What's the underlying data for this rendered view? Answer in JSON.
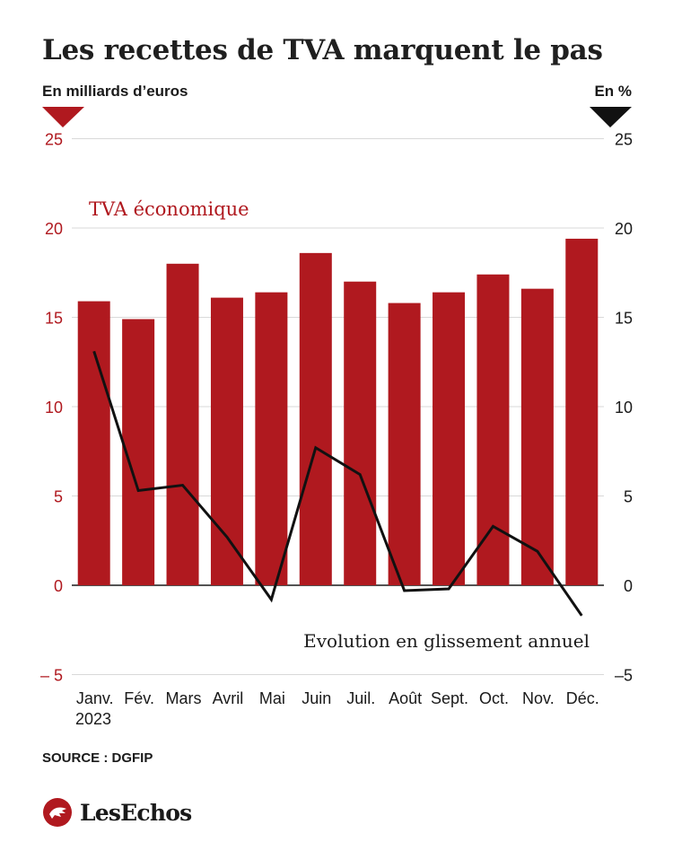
{
  "title": "Les recettes de TVA marquent le pas",
  "left_axis_unit": "En milliards d’euros",
  "right_axis_unit": "En %",
  "source": "SOURCE : DGFIP",
  "logo_text": "LesEchos",
  "colors": {
    "bar": "#b0191f",
    "line": "#111111",
    "grid": "#d9d9d9",
    "left_ticks": "#b0191f",
    "right_ticks": "#1a1a1a"
  },
  "chart_data": {
    "type": "bar",
    "categories": [
      "Janv.",
      "Fév.",
      "Mars",
      "Avril",
      "Mai",
      "Juin",
      "Juil.",
      "Août",
      "Sept.",
      "Oct.",
      "Nov.",
      "Déc."
    ],
    "year_label": "2023",
    "series": [
      {
        "name": "TVA économique",
        "type": "bar",
        "axis": "left",
        "values": [
          15.9,
          14.9,
          18.0,
          16.1,
          16.4,
          18.6,
          17.0,
          15.8,
          16.4,
          17.4,
          16.6,
          19.4
        ]
      },
      {
        "name": "Evolution en glissement annuel",
        "type": "line",
        "axis": "right",
        "values": [
          13.1,
          5.3,
          5.6,
          2.7,
          -0.8,
          7.7,
          6.2,
          -0.3,
          -0.2,
          3.3,
          1.9,
          -1.7
        ]
      }
    ],
    "ylim_left": [
      -5,
      25
    ],
    "ylim_right": [
      -5,
      25
    ],
    "yticks_left": [
      "– 5",
      "0",
      "5",
      "10",
      "15",
      "20",
      "25"
    ],
    "yticks_right": [
      "–5",
      "0",
      "5",
      "10",
      "15",
      "20",
      "25"
    ],
    "ytick_values": [
      -5,
      0,
      5,
      10,
      15,
      20,
      25
    ],
    "grid": true
  }
}
